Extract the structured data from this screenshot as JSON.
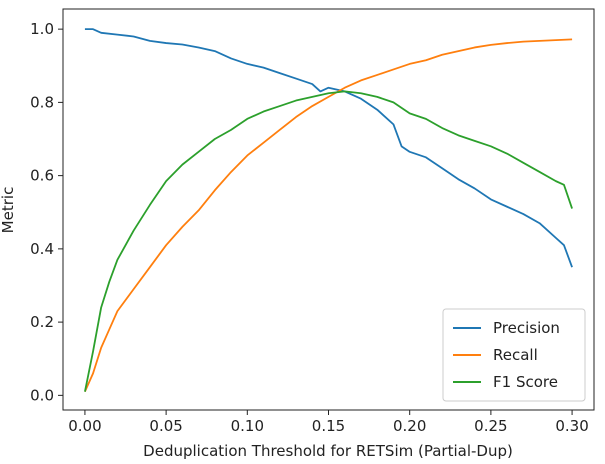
{
  "chart_data": {
    "type": "line",
    "title": "",
    "xlabel": "Deduplication Threshold for RETSim (Partial-Dup)",
    "ylabel": "Metric",
    "xlim": [
      -0.0135,
      0.3135
    ],
    "ylim": [
      -0.04,
      1.055
    ],
    "xticks": [
      0.0,
      0.05,
      0.1,
      0.15,
      0.2,
      0.25,
      0.3
    ],
    "xtick_labels": [
      "0.00",
      "0.05",
      "0.10",
      "0.15",
      "0.20",
      "0.25",
      "0.30"
    ],
    "yticks": [
      0.0,
      0.2,
      0.4,
      0.6,
      0.8,
      1.0
    ],
    "ytick_labels": [
      "0.0",
      "0.2",
      "0.4",
      "0.6",
      "0.8",
      "1.0"
    ],
    "grid": false,
    "legend_position": "lower right",
    "series": [
      {
        "name": "Precision",
        "color": "#1f77b4",
        "x": [
          0.0,
          0.005,
          0.01,
          0.02,
          0.03,
          0.04,
          0.05,
          0.06,
          0.07,
          0.08,
          0.09,
          0.1,
          0.11,
          0.12,
          0.13,
          0.14,
          0.145,
          0.15,
          0.16,
          0.17,
          0.18,
          0.19,
          0.195,
          0.2,
          0.21,
          0.22,
          0.23,
          0.24,
          0.25,
          0.26,
          0.27,
          0.28,
          0.29,
          0.295,
          0.3
        ],
        "y": [
          1.0,
          1.0,
          0.99,
          0.985,
          0.98,
          0.968,
          0.962,
          0.958,
          0.95,
          0.94,
          0.92,
          0.905,
          0.895,
          0.88,
          0.865,
          0.85,
          0.83,
          0.84,
          0.83,
          0.81,
          0.78,
          0.74,
          0.68,
          0.665,
          0.65,
          0.62,
          0.59,
          0.565,
          0.535,
          0.515,
          0.495,
          0.47,
          0.43,
          0.41,
          0.35
        ]
      },
      {
        "name": "Recall",
        "color": "#ff7f0e",
        "x": [
          0.0,
          0.005,
          0.01,
          0.015,
          0.02,
          0.03,
          0.04,
          0.05,
          0.06,
          0.07,
          0.08,
          0.09,
          0.1,
          0.11,
          0.12,
          0.13,
          0.14,
          0.15,
          0.16,
          0.17,
          0.18,
          0.19,
          0.2,
          0.21,
          0.22,
          0.23,
          0.24,
          0.25,
          0.26,
          0.27,
          0.28,
          0.29,
          0.3
        ],
        "y": [
          0.01,
          0.06,
          0.13,
          0.18,
          0.23,
          0.29,
          0.35,
          0.41,
          0.46,
          0.505,
          0.56,
          0.61,
          0.655,
          0.69,
          0.725,
          0.76,
          0.79,
          0.815,
          0.84,
          0.86,
          0.875,
          0.89,
          0.905,
          0.915,
          0.93,
          0.94,
          0.95,
          0.957,
          0.962,
          0.966,
          0.968,
          0.97,
          0.972
        ]
      },
      {
        "name": "F1 Score",
        "color": "#2ca02c",
        "x": [
          0.0,
          0.005,
          0.01,
          0.015,
          0.02,
          0.03,
          0.04,
          0.05,
          0.06,
          0.07,
          0.08,
          0.09,
          0.1,
          0.11,
          0.12,
          0.13,
          0.14,
          0.15,
          0.16,
          0.17,
          0.18,
          0.19,
          0.2,
          0.21,
          0.22,
          0.23,
          0.24,
          0.25,
          0.26,
          0.27,
          0.28,
          0.29,
          0.295,
          0.3
        ],
        "y": [
          0.01,
          0.12,
          0.24,
          0.31,
          0.37,
          0.45,
          0.52,
          0.585,
          0.63,
          0.665,
          0.7,
          0.725,
          0.755,
          0.775,
          0.79,
          0.805,
          0.815,
          0.825,
          0.83,
          0.825,
          0.815,
          0.8,
          0.77,
          0.755,
          0.73,
          0.71,
          0.695,
          0.68,
          0.66,
          0.635,
          0.61,
          0.585,
          0.575,
          0.51
        ]
      }
    ]
  }
}
